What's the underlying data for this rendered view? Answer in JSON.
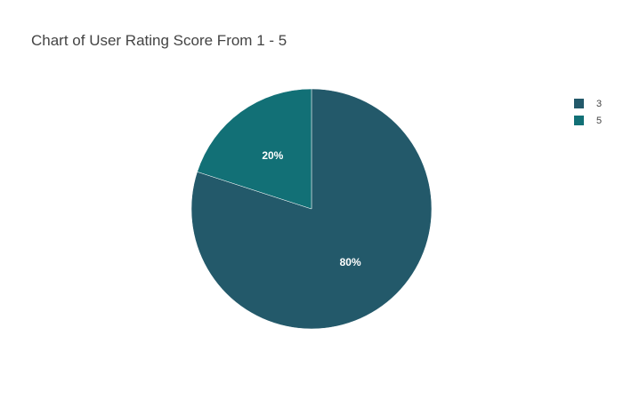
{
  "chart_data": {
    "type": "pie",
    "title": "Chart of User Rating Score From 1 - 5",
    "slices": [
      {
        "label": "3",
        "value": 80,
        "display": "80%",
        "color": "#23596a"
      },
      {
        "label": "5",
        "value": 20,
        "display": "20%",
        "color": "#127076"
      }
    ],
    "legend_position": "top-right"
  }
}
